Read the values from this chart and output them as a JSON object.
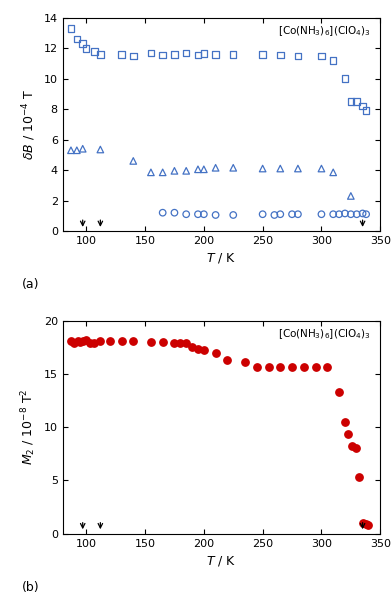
{
  "panel_a": {
    "title": "[Co(NH$_3$)$_6$](ClO$_4$)$_3$",
    "xlabel": "$T$ / K",
    "ylabel": "$\\delta B$ / 10$^{-4}$ T",
    "xlim": [
      80,
      350
    ],
    "ylim": [
      0,
      14
    ],
    "yticks": [
      0,
      2,
      4,
      6,
      8,
      10,
      12,
      14
    ],
    "xticks": [
      100,
      150,
      200,
      250,
      300,
      350
    ],
    "arrow_temps": [
      97,
      112,
      335
    ],
    "squares": {
      "T": [
        87,
        92,
        97,
        100,
        107,
        112,
        130,
        140,
        155,
        165,
        175,
        185,
        195,
        200,
        210,
        225,
        250,
        265,
        280,
        300,
        310,
        320,
        325,
        330,
        335,
        338
      ],
      "dB": [
        13.3,
        12.6,
        12.3,
        12.0,
        11.8,
        11.6,
        11.6,
        11.5,
        11.7,
        11.55,
        11.6,
        11.7,
        11.55,
        11.65,
        11.6,
        11.6,
        11.6,
        11.55,
        11.5,
        11.5,
        11.2,
        10.0,
        8.5,
        8.5,
        8.2,
        7.9
      ]
    },
    "triangles": {
      "T": [
        87,
        92,
        97,
        112,
        140,
        155,
        165,
        175,
        185,
        195,
        200,
        210,
        225,
        250,
        265,
        280,
        300,
        310,
        325
      ],
      "dB": [
        5.3,
        5.3,
        5.4,
        5.35,
        4.6,
        3.85,
        3.85,
        3.95,
        3.95,
        4.05,
        4.05,
        4.15,
        4.15,
        4.1,
        4.1,
        4.1,
        4.1,
        3.85,
        2.3
      ]
    },
    "circles": {
      "T": [
        165,
        175,
        185,
        195,
        200,
        210,
        225,
        250,
        260,
        265,
        275,
        280,
        300,
        310,
        315,
        320,
        325,
        330,
        335,
        338
      ],
      "dB": [
        1.2,
        1.2,
        1.1,
        1.1,
        1.1,
        1.05,
        1.05,
        1.1,
        1.05,
        1.1,
        1.1,
        1.1,
        1.1,
        1.1,
        1.1,
        1.15,
        1.1,
        1.1,
        1.15,
        1.1
      ]
    },
    "color": "#4472C4",
    "label": "(a)"
  },
  "panel_b": {
    "title": "[Co(NH$_3$)$_6$](ClO$_4$)$_3$",
    "xlabel": "$T$ / K",
    "ylabel": "$M_2$ / 10$^{-8}$ T$^2$",
    "xlim": [
      80,
      350
    ],
    "ylim": [
      0,
      20
    ],
    "yticks": [
      0,
      5,
      10,
      15,
      20
    ],
    "xticks": [
      100,
      150,
      200,
      250,
      300,
      350
    ],
    "arrow_temps": [
      97,
      112,
      335
    ],
    "dots": {
      "T": [
        87,
        90,
        93,
        95,
        97,
        100,
        103,
        107,
        112,
        120,
        130,
        140,
        155,
        165,
        175,
        180,
        185,
        190,
        195,
        200,
        210,
        220,
        235,
        245,
        255,
        265,
        275,
        285,
        295,
        305,
        315,
        320,
        323,
        326,
        329,
        332,
        335,
        338,
        340
      ],
      "M2": [
        18.1,
        17.9,
        18.1,
        18.0,
        18.1,
        18.2,
        17.9,
        17.9,
        18.1,
        18.05,
        18.1,
        18.1,
        18.0,
        18.0,
        17.85,
        17.9,
        17.85,
        17.55,
        17.3,
        17.2,
        16.95,
        16.3,
        16.1,
        15.6,
        15.6,
        15.6,
        15.65,
        15.65,
        15.65,
        15.6,
        13.3,
        10.5,
        9.4,
        8.2,
        8.05,
        5.3,
        1.0,
        0.9,
        0.8
      ]
    },
    "color": "#CC0000",
    "label": "(b)"
  }
}
